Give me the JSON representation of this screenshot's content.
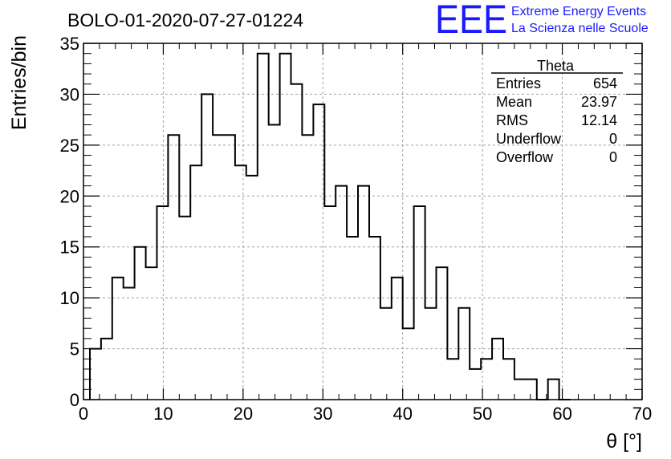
{
  "chart_data": {
    "type": "bar",
    "title": "BOLO-01-2020-07-27-01224",
    "xlabel": "θ [°]",
    "ylabel": "Entries/bin",
    "xlim": [
      0,
      70
    ],
    "ylim": [
      0,
      35
    ],
    "x_ticks": [
      0,
      10,
      20,
      30,
      40,
      50,
      60,
      70
    ],
    "y_ticks": [
      0,
      5,
      10,
      15,
      20,
      25,
      30,
      35
    ],
    "grid": true,
    "bin_width": 1.4,
    "bin_start": 0.8,
    "values": [
      5,
      6,
      12,
      11,
      15,
      13,
      19,
      26,
      18,
      23,
      30,
      26,
      26,
      23,
      22,
      34,
      27,
      34,
      31,
      26,
      29,
      19,
      21,
      16,
      21,
      16,
      9,
      12,
      7,
      19,
      9,
      13,
      4,
      9,
      3,
      4,
      6,
      4,
      2,
      2,
      0,
      2,
      0
    ],
    "line_color": "#000000"
  },
  "stats_box": {
    "title": "Theta",
    "rows": [
      {
        "label": "Entries",
        "value": "654"
      },
      {
        "label": "Mean",
        "value": "23.97"
      },
      {
        "label": "RMS",
        "value": "12.14"
      },
      {
        "label": "Underflow",
        "value": "0"
      },
      {
        "label": "Overflow",
        "value": "0"
      }
    ]
  },
  "logo": {
    "text": "EEE",
    "line1": "Extreme Energy Events",
    "line2": "La Scienza nelle Scuole",
    "color": "#1a1aff"
  }
}
